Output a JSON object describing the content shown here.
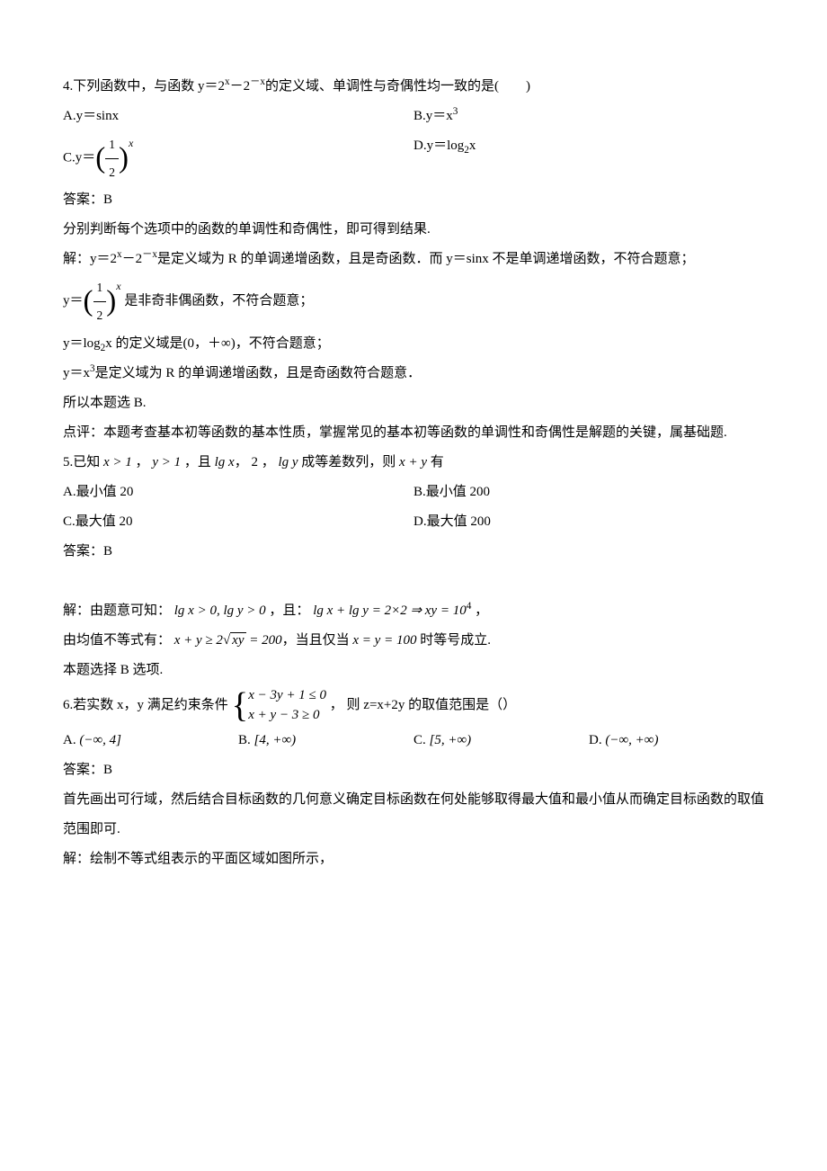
{
  "q4": {
    "stem_a": "4.下列函数中，与函数 y＝2",
    "stem_sup1": "x",
    "stem_b": "－2",
    "stem_sup2": "－x",
    "stem_c": "的定义域、单调性与奇偶性均一致的是(　　)",
    "optA": "A.y＝sinx",
    "optB_a": "B.y＝x",
    "optB_sup": "3",
    "optC_a": "C.y＝",
    "optC_num": "1",
    "optC_den": "2",
    "optD_a": "D.y＝log",
    "optD_sub": "2",
    "optD_b": "x",
    "ans": "答案：B",
    "expl1": "分别判断每个选项中的函数的单调性和奇偶性，即可得到结果.",
    "expl2_a": "解：y＝2",
    "expl2_sup1": "x",
    "expl2_b": "－2",
    "expl2_sup2": "－x",
    "expl2_c": "是定义域为 R 的单调递增函数，且是奇函数．而 y＝sinx 不是单调递增函数，不符合题意；",
    "expl3_a": "y＝",
    "expl3_b": "是非奇非偶函数，不符合题意；",
    "expl4_a": "y＝log",
    "expl4_sub": "2",
    "expl4_b": "x 的定义域是(0，＋∞)，不符合题意；",
    "expl5_a": "y＝x",
    "expl5_sup": "3",
    "expl5_b": "是定义域为 R 的单调递增函数，且是奇函数符合题意．",
    "expl6": "所以本题选 B.",
    "expl7": "点评：本题考查基本初等函数的基本性质，掌握常见的基本初等函数的单调性和奇偶性是解题的关键，属基础题."
  },
  "q5": {
    "stem_a": "5.已知 ",
    "stem_m1": "x > 1",
    "stem_b": " ， ",
    "stem_m2": "y > 1",
    "stem_c": " ，且 ",
    "stem_m3": "lg x",
    "stem_d": "， 2 ， ",
    "stem_m4": "lg y",
    "stem_e": " 成等差数列，则 ",
    "stem_m5": "x + y",
    "stem_f": " 有",
    "optA": "A.最小值 20",
    "optB": "B.最小值 200",
    "optC": "C.最大值 20",
    "optD": "D.最大值 200",
    "ans": "答案：B",
    "expl1_a": "解：由题意可知： ",
    "expl1_m1": "lg x > 0, lg y > 0",
    "expl1_b": " ，且： ",
    "expl1_m2": "lg x + lg y = 2×2 ⇒ xy = 10",
    "expl1_sup": "4",
    "expl1_c": " ，",
    "expl2_a": "由均值不等式有： ",
    "expl2_m1": "x + y ≥ 2",
    "expl2_sqrt": "xy",
    "expl2_m2": " = 200",
    "expl2_b": "，当且仅当 ",
    "expl2_m3": "x = y = 100",
    "expl2_c": " 时等号成立.",
    "expl3": "本题选择 B 选项."
  },
  "q6": {
    "stem_a": "6.若实数 x，y 满足约束条件 ",
    "case1": "x − 3y + 1 ≤ 0",
    "case2": "x + y − 3 ≥ 0",
    "stem_b": " ， 则 z=x+2y 的取值范围是（）",
    "optA_a": "A. ",
    "optA_m": "(−∞, 4]",
    "optB_a": "B. ",
    "optB_m": "[4, +∞)",
    "optC_a": "C. ",
    "optC_m": "[5, +∞)",
    "optD_a": "D. ",
    "optD_m": "(−∞, +∞)",
    "ans": "答案：B",
    "expl1": "首先画出可行域，然后结合目标函数的几何意义确定目标函数在何处能够取得最大值和最小值从而确定目标函数的取值范围即可.",
    "expl2": "解：绘制不等式组表示的平面区域如图所示，"
  }
}
